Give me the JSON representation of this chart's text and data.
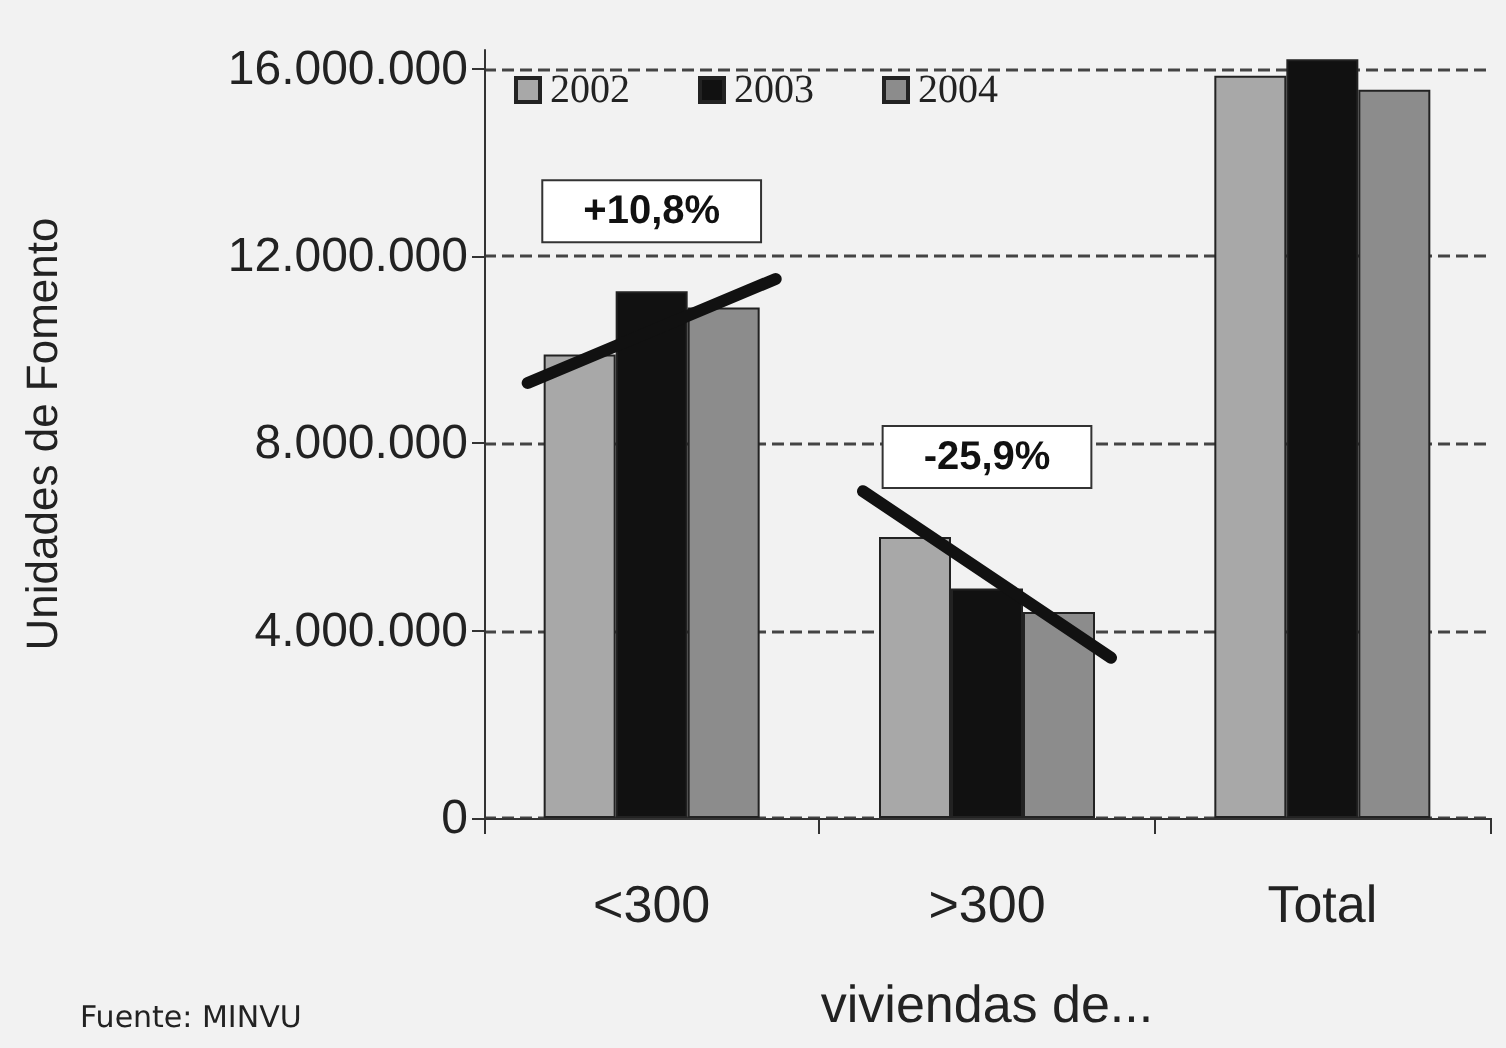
{
  "chart_data": {
    "type": "bar",
    "ylabel": "Unidades de Fomento",
    "xlabel": "viviendas de...",
    "categories": [
      "<300",
      ">300",
      "Total"
    ],
    "series": [
      {
        "name": "2002",
        "color": "#a8a8a8",
        "values": [
          9900000,
          6000000,
          15850000
        ]
      },
      {
        "name": "2003",
        "color": "#111111",
        "values": [
          11250000,
          4900000,
          16200000
        ]
      },
      {
        "name": "2004",
        "color": "#8c8c8c",
        "values": [
          10900000,
          4400000,
          15550000
        ]
      }
    ],
    "ylim": [
      0,
      16400000
    ],
    "yticks": [
      0,
      {
        "value": 4000000,
        "label": "4.000.000"
      },
      {
        "value": 8000000,
        "label": "8.000.000"
      },
      {
        "value": 12000000,
        "label": "12.000.000"
      },
      {
        "value": 16000000,
        "label": "16.000.000"
      }
    ],
    "grid": "y",
    "legend": "top left",
    "annotations": [
      "+10,8%",
      "-25,9%",
      "Fuente: MINVU"
    ]
  }
}
